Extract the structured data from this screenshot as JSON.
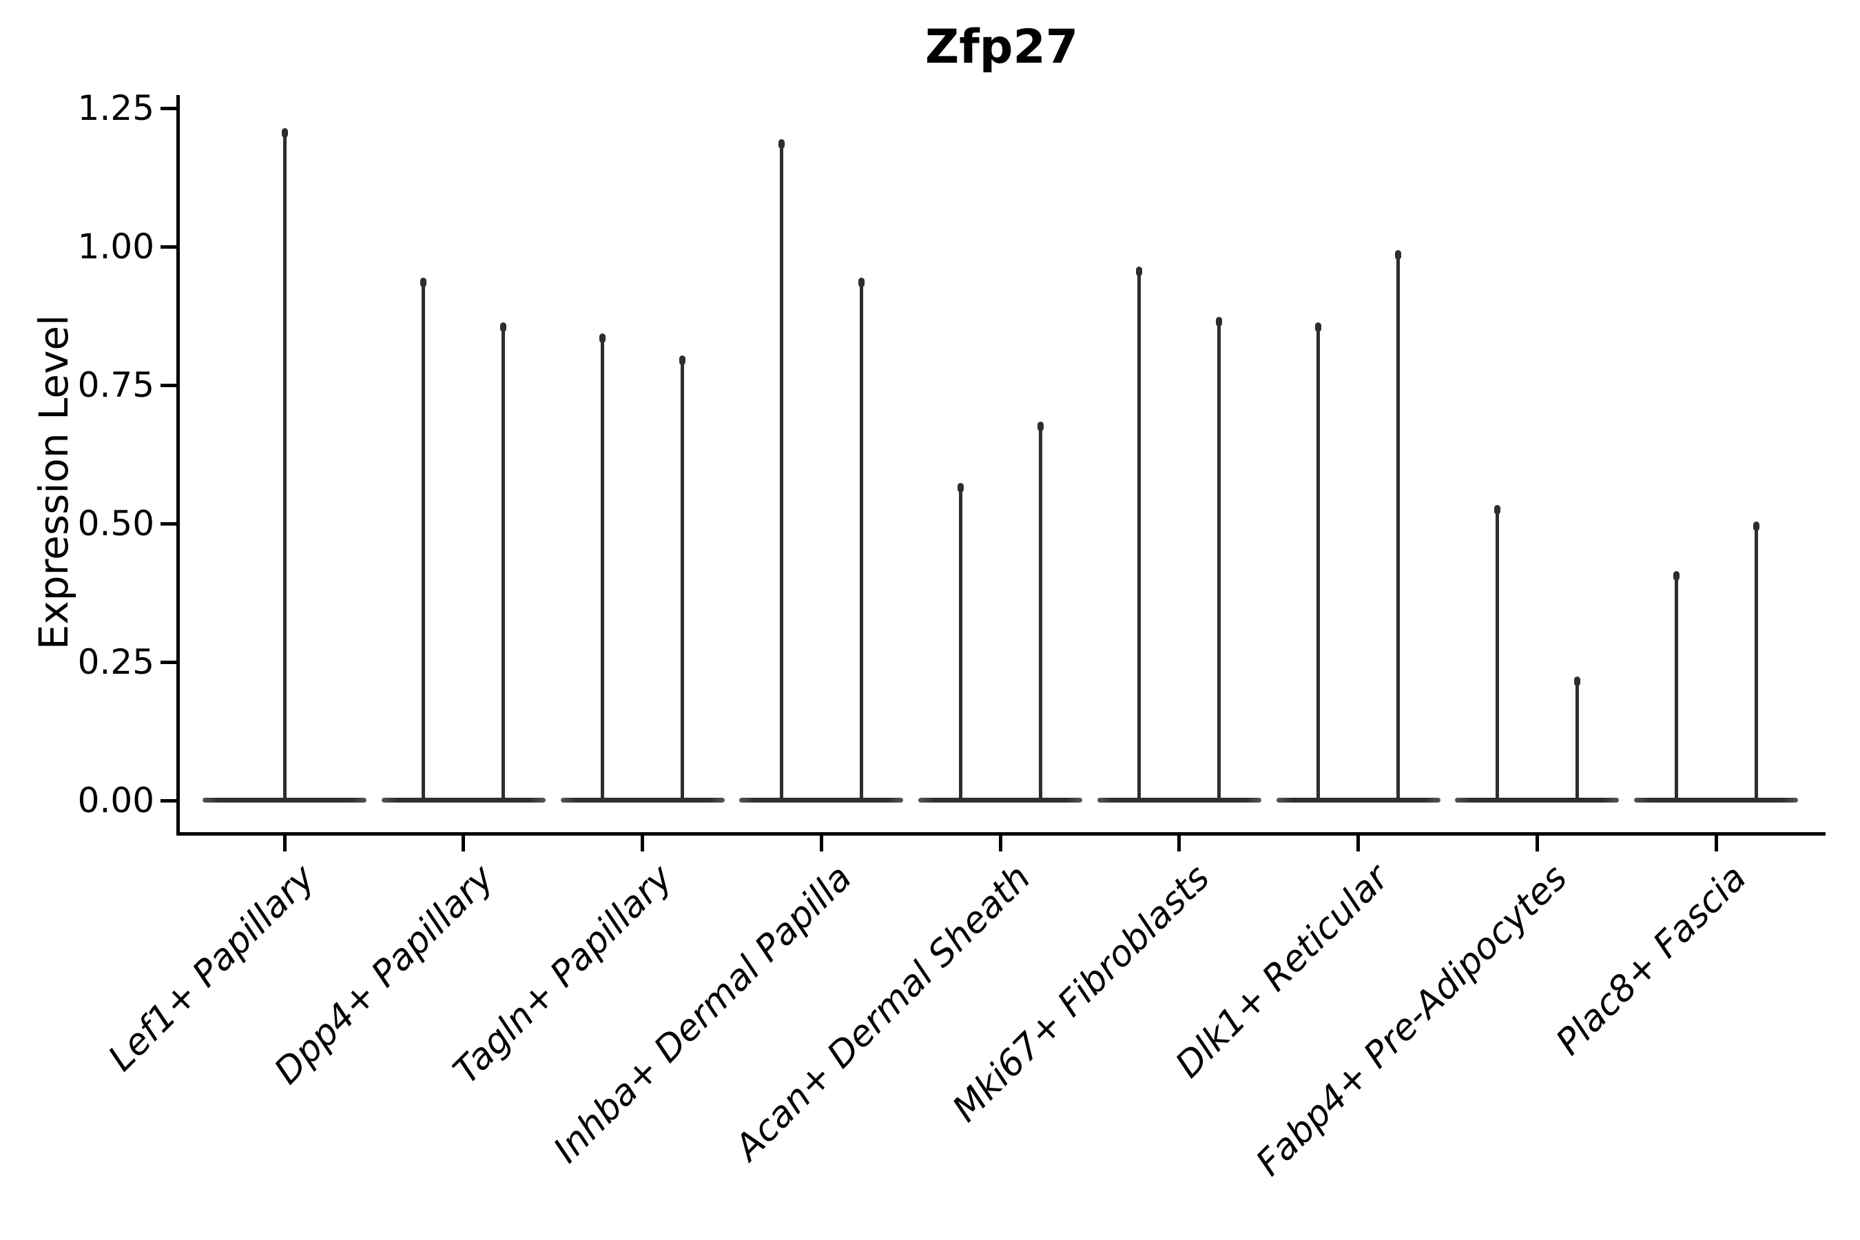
{
  "figure": {
    "title": "Zfp27",
    "y_axis": {
      "label": "Expression Level",
      "tick_labels": [
        "0.00",
        "0.25",
        "0.50",
        "0.75",
        "1.00",
        "1.25"
      ]
    },
    "x_axis": {
      "tick_labels": [
        "Lef1+ Papillary",
        "Dpp4+ Papillary",
        "Tagln+ Papillary",
        "Inhba+ Dermal Papilla",
        "Acan+ Dermal Sheath",
        "Mki67+ Fibroblasts",
        "Dlk1+ Reticular",
        "Fabp4+ Pre-Adipocytes",
        "Plac8+ Fascia"
      ]
    }
  },
  "colors": {
    "violin": "#2e2e2e",
    "violin_edge_fade": "#555555",
    "axis": "#000000",
    "text": "#000000",
    "background": "#ffffff"
  },
  "chart_data": {
    "type": "violin",
    "title": "Zfp27",
    "xlabel": "",
    "ylabel": "Expression Level",
    "ylim": [
      0,
      1.25
    ],
    "yticks": [
      0.0,
      0.25,
      0.5,
      0.75,
      1.0,
      1.25
    ],
    "grid": false,
    "legend": null,
    "style_note": "Sparse single-cell expression violins: each category shows a wide flat density base at 0 and thin vertical density spikes; 'max' is the expression level at the top of each spike, read off the y axis.",
    "categories": [
      "Lef1+ Papillary",
      "Dpp4+ Papillary",
      "Tagln+ Papillary",
      "Inhba+ Dermal Papilla",
      "Acan+ Dermal Sheath",
      "Mki67+ Fibroblasts",
      "Dlk1+ Reticular",
      "Fabp4+ Pre-Adipocytes",
      "Plac8+ Fascia"
    ],
    "series": [
      {
        "category": "Lef1+ Papillary",
        "spikes": [
          {
            "pos": "center",
            "max": 1.21
          }
        ]
      },
      {
        "category": "Dpp4+ Papillary",
        "spikes": [
          {
            "pos": "left",
            "max": 0.94
          },
          {
            "pos": "right",
            "max": 0.86
          }
        ]
      },
      {
        "category": "Tagln+ Papillary",
        "spikes": [
          {
            "pos": "left",
            "max": 0.84
          },
          {
            "pos": "right",
            "max": 0.8
          }
        ]
      },
      {
        "category": "Inhba+ Dermal Papilla",
        "spikes": [
          {
            "pos": "left",
            "max": 1.19
          },
          {
            "pos": "right",
            "max": 0.94
          }
        ]
      },
      {
        "category": "Acan+ Dermal Sheath",
        "spikes": [
          {
            "pos": "left",
            "max": 0.57
          },
          {
            "pos": "right",
            "max": 0.68
          }
        ]
      },
      {
        "category": "Mki67+ Fibroblasts",
        "spikes": [
          {
            "pos": "left",
            "max": 0.96
          },
          {
            "pos": "right",
            "max": 0.87
          }
        ]
      },
      {
        "category": "Dlk1+ Reticular",
        "spikes": [
          {
            "pos": "left",
            "max": 0.86
          },
          {
            "pos": "right",
            "max": 0.99
          }
        ]
      },
      {
        "category": "Fabp4+ Pre-Adipocytes",
        "spikes": [
          {
            "pos": "left",
            "max": 0.53
          },
          {
            "pos": "right",
            "max": 0.22
          }
        ]
      },
      {
        "category": "Plac8+ Fascia",
        "spikes": [
          {
            "pos": "left",
            "max": 0.41
          },
          {
            "pos": "right",
            "max": 0.5
          }
        ]
      }
    ]
  }
}
